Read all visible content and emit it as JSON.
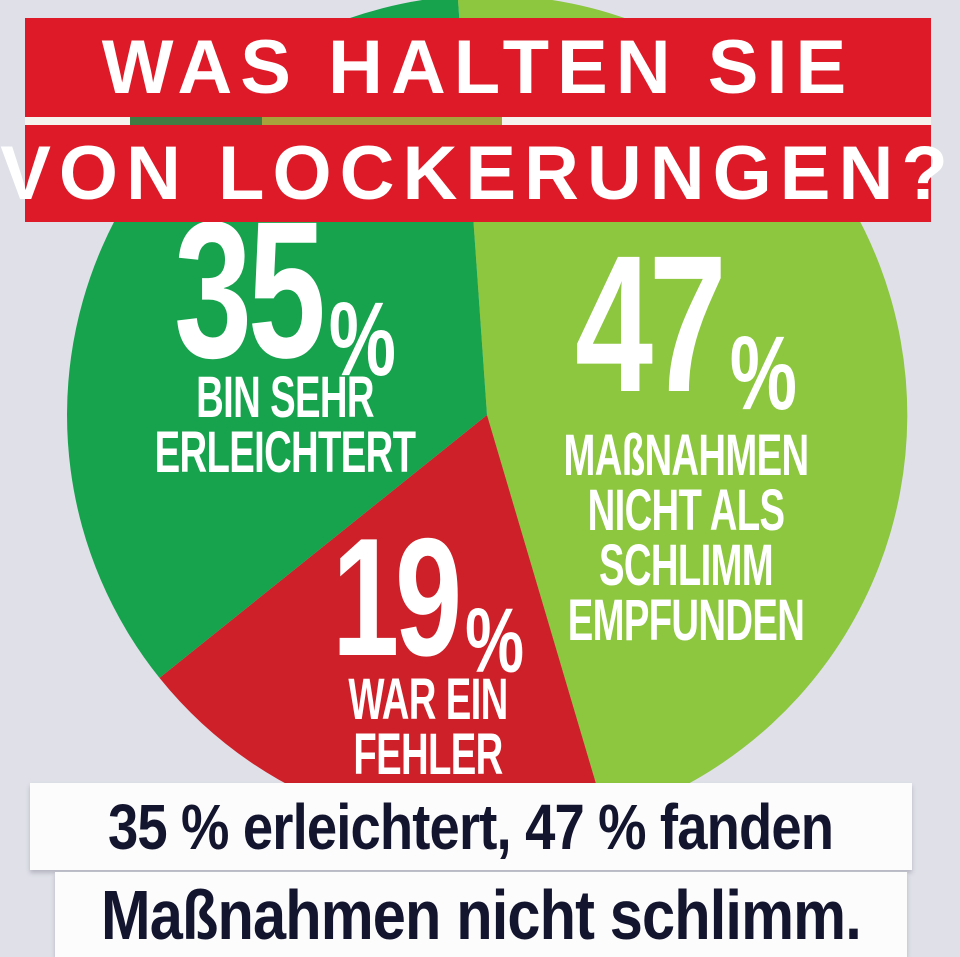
{
  "page_background": "#dfe0e8",
  "header": {
    "line1": "WAS HALTEN SIE",
    "line2": "VON LOCKERUNGEN?",
    "band_color": "#de1a28",
    "text_color": "#ffffff",
    "divider_base_color": "#f6f3ee",
    "divider_segment_colors": [
      "#3e7c44",
      "#a7a23b"
    ]
  },
  "chart_data": {
    "type": "pie",
    "title": "WAS HALTEN SIE VON LOCKERUNGEN?",
    "units": "%",
    "start_angle_deg": -4,
    "rotation": "clockwise-from-12-oclock",
    "legend_position": "labels inside slices",
    "label_text_color": "#ffffff",
    "slices": [
      {
        "label": "Maßnahmen nicht als schlimm empfunden",
        "value": 47,
        "display_value": "47",
        "percent_sign": "%",
        "label_lines": [
          "MAßNAHMEN",
          "NICHT ALS",
          "SCHLIMM",
          "EMPFUNDEN"
        ],
        "color": "#8dc63f"
      },
      {
        "label": "War ein Fehler",
        "value": 19,
        "display_value": "19",
        "percent_sign": "%",
        "label_lines": [
          "WAR EIN",
          "FEHLER"
        ],
        "color": "#cd2028"
      },
      {
        "label": "Bin sehr erleichtert",
        "value": 35,
        "display_value": "35",
        "percent_sign": "%",
        "label_lines": [
          "BIN SEHR",
          "ERLEICHTERT"
        ],
        "color": "#17a24d"
      }
    ]
  },
  "footer": {
    "line1": "35 % erleichtert, 47 % fanden",
    "line2": "Maßnahmen nicht schlimm.",
    "band_color": "#fcfcfd",
    "text_color": "#13142e"
  }
}
